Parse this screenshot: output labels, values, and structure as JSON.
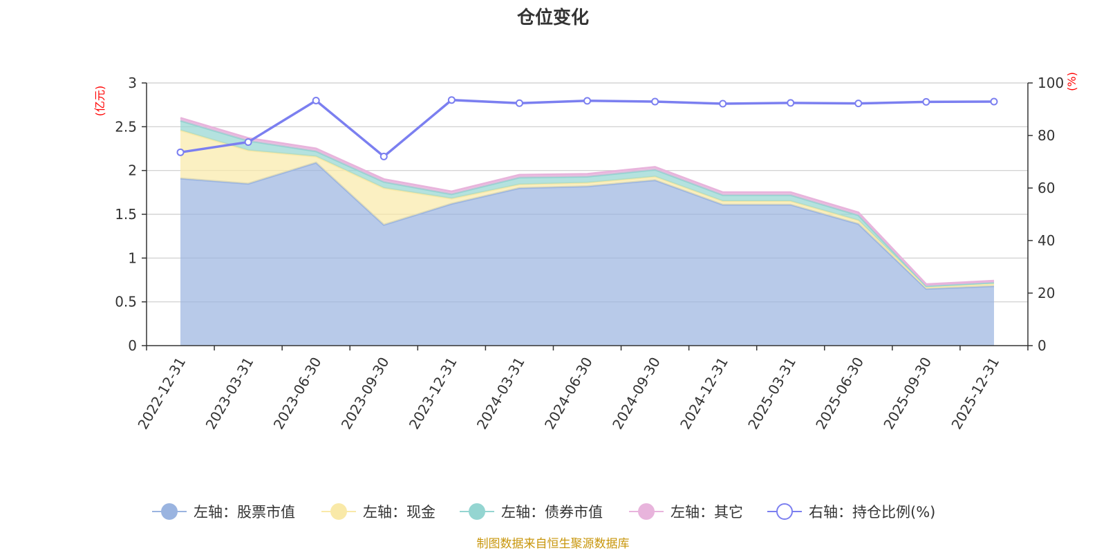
{
  "chart_data": {
    "type": "area",
    "title": "仓位变化",
    "categories": [
      "2022-12-31",
      "2023-03-31",
      "2023-06-30",
      "2023-09-30",
      "2023-12-31",
      "2024-03-31",
      "2024-06-30",
      "2024-09-30",
      "2024-12-31",
      "2025-03-31",
      "2025-06-30",
      "2025-09-30",
      "2025-12-31"
    ],
    "left_axis": {
      "unit": "(亿元)",
      "ylim": [
        0,
        3
      ],
      "ticks": [
        0,
        0.5,
        1,
        1.5,
        2,
        2.5,
        3
      ],
      "tick_labels": [
        "0",
        "0.5",
        "1",
        "1.5",
        "2",
        "2.5",
        "3"
      ]
    },
    "right_axis": {
      "unit": "(%)",
      "ylim": [
        0,
        100
      ],
      "ticks": [
        0,
        20,
        40,
        60,
        80,
        100
      ],
      "tick_labels": [
        "0",
        "20",
        "40",
        "60",
        "80",
        "100"
      ]
    },
    "stacked_series": [
      {
        "name": "左轴：股票市值",
        "color": "#9ab4e0",
        "values": [
          1.91,
          1.85,
          2.09,
          1.38,
          1.62,
          1.8,
          1.82,
          1.89,
          1.61,
          1.61,
          1.39,
          0.65,
          0.68
        ]
      },
      {
        "name": "左轴：现金",
        "color": "#f9e9a8",
        "values": [
          0.55,
          0.38,
          0.07,
          0.42,
          0.06,
          0.04,
          0.04,
          0.04,
          0.04,
          0.04,
          0.04,
          0.02,
          0.03
        ]
      },
      {
        "name": "左轴：债券市值",
        "color": "#94d5d1",
        "values": [
          0.11,
          0.11,
          0.06,
          0.07,
          0.05,
          0.08,
          0.07,
          0.08,
          0.07,
          0.07,
          0.06,
          0.01,
          0.01
        ]
      },
      {
        "name": "左轴：其它",
        "color": "#e8b4dc",
        "values": [
          0.03,
          0.03,
          0.03,
          0.03,
          0.03,
          0.03,
          0.03,
          0.03,
          0.03,
          0.03,
          0.03,
          0.02,
          0.02
        ]
      }
    ],
    "line_series": {
      "name": "右轴：持仓比例(%)",
      "color": "#7b7ff0",
      "values": [
        73.6,
        77.5,
        93.3,
        72.0,
        93.5,
        92.3,
        93.2,
        92.9,
        92.1,
        92.4,
        92.2,
        92.8,
        92.9
      ]
    },
    "legend_position": "bottom",
    "grid": true
  },
  "source_note": "制图数据来自恒生聚源数据库"
}
